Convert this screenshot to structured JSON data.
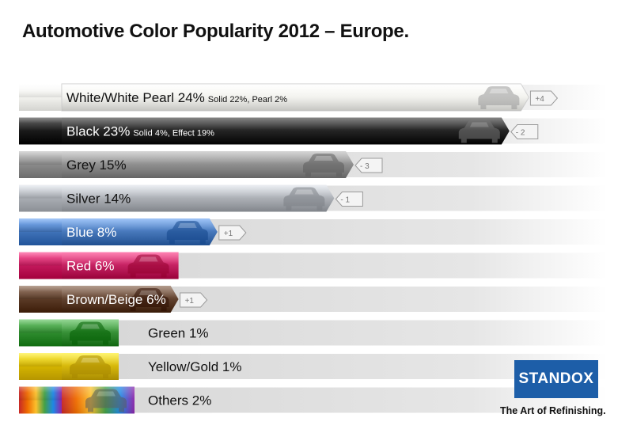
{
  "title": "Automotive Color Popularity 2012 – Europe.",
  "brand": {
    "logo": "STANDOX",
    "tagline": "The Art of Refinishing."
  },
  "chart_data": {
    "type": "bar",
    "orientation": "horizontal",
    "unit": "%",
    "categories": [
      "White/White Pearl",
      "Black",
      "Grey",
      "Silver",
      "Blue",
      "Red",
      "Brown/Beige",
      "Green",
      "Yellow/Gold",
      "Others"
    ],
    "values": [
      24,
      23,
      15,
      14,
      8,
      6,
      6,
      1,
      1,
      2
    ],
    "labels": [
      "White/White Pearl 24%",
      "Black 23%",
      "Grey 15%",
      "Silver 14%",
      "Blue 8%",
      "Red 6%",
      "Brown/Beige 6%",
      "Green 1%",
      "Yellow/Gold 1%",
      "Others 2%"
    ],
    "sublabels": [
      "Solid 22%, Pearl 2%",
      "Solid 4%, Effect 19%",
      "",
      "",
      "",
      "",
      "",
      "",
      "",
      ""
    ],
    "change_vs_previous_year": [
      "+4",
      "- 2",
      "- 3",
      "- 1",
      "+1",
      "",
      "+1",
      "",
      "",
      ""
    ],
    "colors": [
      "#f2f2ee",
      "#1a1a1a",
      "#8a8a8a",
      "#a9adb3",
      "#3f72b8",
      "#c2185b",
      "#5a3a26",
      "#2e8b2e",
      "#d4b400",
      "#888888"
    ],
    "xlim": [
      0,
      26
    ],
    "grid": false,
    "legend": "none"
  }
}
